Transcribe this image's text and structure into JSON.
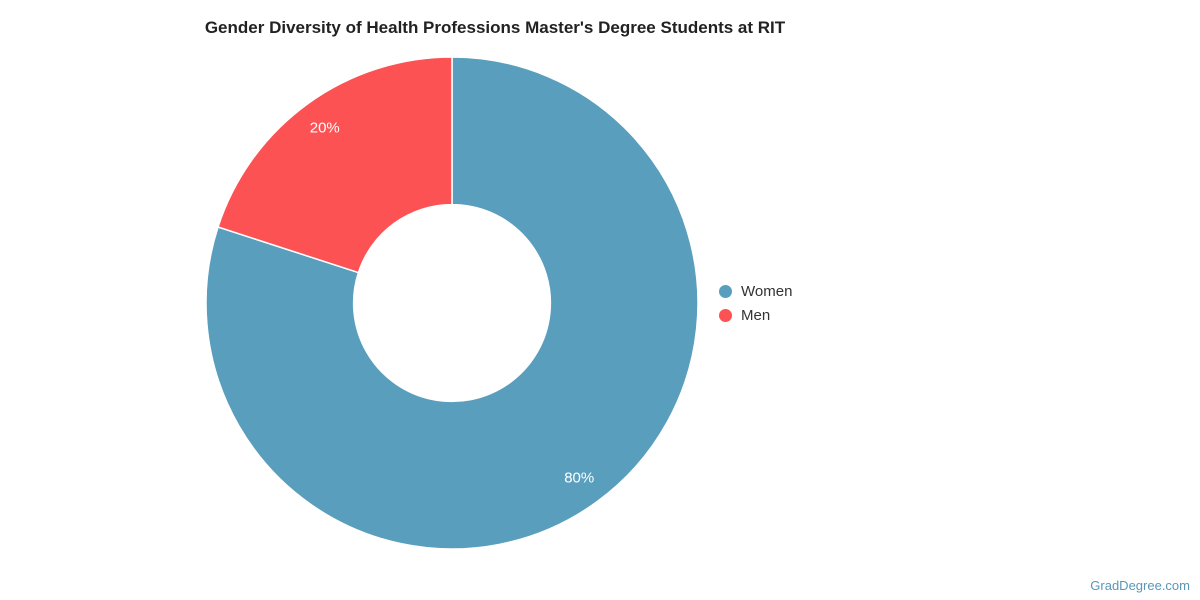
{
  "title": "Gender Diversity of Health Professions Master's Degree Students at RIT",
  "watermark": {
    "text": "GradDegree.com",
    "color": "#5897B8"
  },
  "chart_data": {
    "type": "pie",
    "subtype": "donut",
    "title": "Gender Diversity of Health Professions Master's Degree Students at RIT",
    "categories": [
      "Women",
      "Men"
    ],
    "values": [
      80,
      20
    ],
    "segments": [
      {
        "name": "Women",
        "value": 80,
        "label": "80%",
        "color": "#5A9EBD"
      },
      {
        "name": "Men",
        "value": 20,
        "label": "20%",
        "color": "#FC5254"
      }
    ],
    "units": "percent",
    "start_angle_deg": 0,
    "direction": "clockwise",
    "inner_radius_fraction": 0.4,
    "border_color": "#ffffff",
    "legend_position": "right",
    "data_labels": "inside, white"
  }
}
